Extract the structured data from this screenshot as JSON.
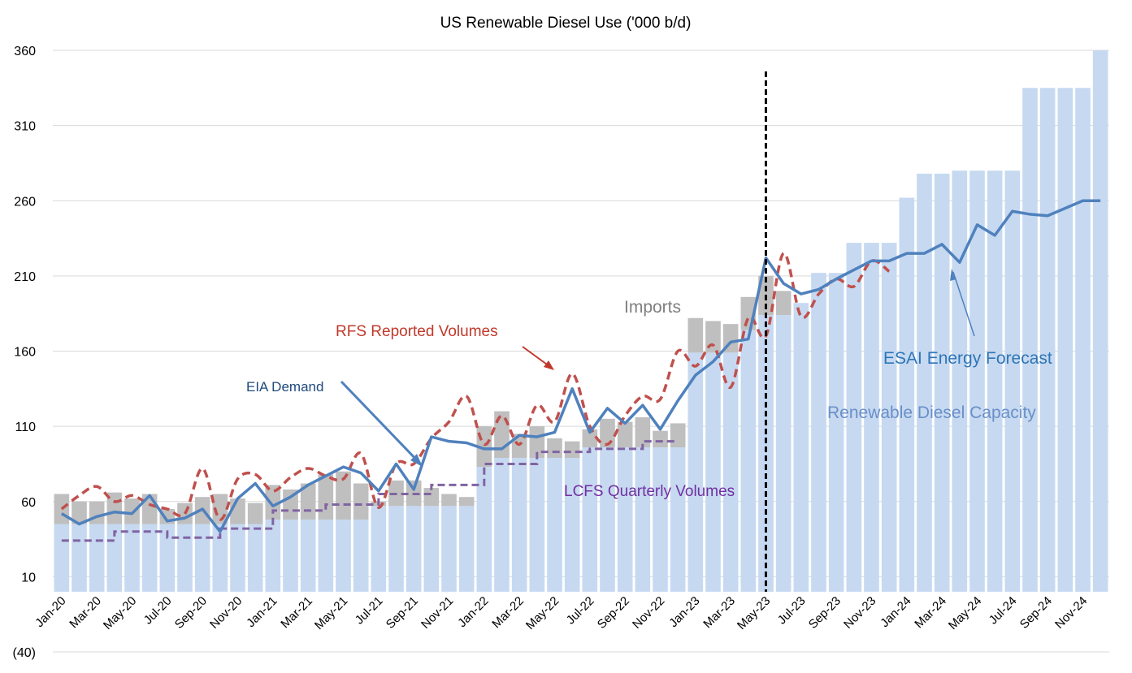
{
  "chart_data": {
    "type": "bar+line",
    "title": "US Renewable Diesel Use ('000 b/d)",
    "ylim": [
      -40,
      360
    ],
    "yticks": [
      360,
      310,
      260,
      210,
      160,
      110,
      60,
      10,
      -40
    ],
    "ytick_labels": [
      "360",
      "310",
      "260",
      "210",
      "160",
      "110",
      "60",
      "10",
      "(40)"
    ],
    "xtick_labels": [
      "Jan-20",
      "Mar-20",
      "May-20",
      "Jul-20",
      "Sep-20",
      "Nov-20",
      "Jan-21",
      "Mar-21",
      "May-21",
      "Jul-21",
      "Sep-21",
      "Nov-21",
      "Jan-22",
      "Mar-22",
      "May-22",
      "Jul-22",
      "Sep-22",
      "Nov-22",
      "Jan-23",
      "Mar-23",
      "May-23",
      "Jul-23",
      "Sep-23",
      "Nov-23",
      "Jan-24",
      "Mar-24",
      "May-24",
      "Jul-24",
      "Sep-24",
      "Nov-24"
    ],
    "months": 60,
    "forecast_divider_month_index": 40.5,
    "series": [
      {
        "name": "Renewable Diesel Capacity",
        "kind": "bar",
        "color": "#c6d9f1",
        "values": [
          45,
          45,
          45,
          45,
          45,
          45,
          45,
          45,
          45,
          45,
          45,
          45,
          48,
          48,
          48,
          48,
          48,
          48,
          57,
          57,
          57,
          57,
          57,
          57,
          83,
          89,
          89,
          89,
          89,
          89,
          96,
          96,
          96,
          96,
          96,
          96,
          159,
          159,
          159,
          174,
          184,
          184,
          192,
          212,
          212,
          232,
          232,
          232,
          262,
          278,
          278,
          280,
          280,
          280,
          280,
          335,
          335,
          335,
          335,
          360
        ]
      },
      {
        "name": "Imports",
        "kind": "bar-stack",
        "color": "#bfbfbf",
        "values": [
          20,
          15,
          15,
          21,
          17,
          20,
          10,
          14,
          18,
          20,
          17,
          14,
          23,
          20,
          24,
          30,
          32,
          24,
          3,
          17,
          17,
          12,
          8,
          6,
          27,
          31,
          16,
          21,
          13,
          11,
          12,
          19,
          17,
          20,
          11,
          16,
          23,
          21,
          19,
          22,
          26,
          16,
          0,
          0,
          0,
          0,
          0,
          0,
          0,
          0,
          0,
          0,
          0,
          0,
          0,
          0,
          0,
          0,
          0,
          0
        ]
      },
      {
        "name": "EIA Demand",
        "kind": "line",
        "color": "#4f81bd",
        "values": [
          52,
          45,
          50,
          53,
          52,
          64,
          47,
          49,
          55,
          40,
          62,
          72,
          57,
          63,
          71,
          77,
          83,
          79,
          67,
          85,
          68,
          103,
          100,
          99,
          95,
          95,
          104,
          103,
          106,
          135,
          106,
          122,
          112,
          124,
          108,
          127,
          144,
          153,
          166,
          168,
          222,
          205,
          198,
          201,
          208,
          214,
          220,
          220,
          225,
          225,
          231,
          219,
          244,
          237,
          253,
          251,
          250,
          255,
          260,
          260
        ]
      },
      {
        "name": "RFS Reported Volumes",
        "kind": "dashed-line",
        "color": "#c0504d",
        "values": [
          55,
          64,
          70,
          60,
          64,
          58,
          55,
          52,
          82,
          48,
          75,
          78,
          67,
          76,
          82,
          77,
          75,
          92,
          56,
          85,
          85,
          102,
          113,
          130,
          98,
          117,
          98,
          124,
          113,
          145,
          110,
          98,
          117,
          130,
          128,
          160,
          150,
          164,
          136,
          182,
          170,
          225,
          183,
          198,
          208,
          203,
          220,
          213,
          null,
          null,
          null,
          null,
          null,
          null,
          null,
          null,
          null,
          null,
          null,
          null
        ]
      },
      {
        "name": "LCFS Quarterly Volumes",
        "kind": "dashed-step",
        "color": "#8064a2",
        "values": [
          34,
          34,
          34,
          40,
          40,
          40,
          36,
          36,
          36,
          42,
          42,
          42,
          54,
          54,
          54,
          58,
          58,
          58,
          65,
          65,
          65,
          71,
          71,
          71,
          85,
          85,
          85,
          93,
          93,
          93,
          95,
          95,
          95,
          100,
          100,
          100,
          null,
          null,
          null,
          null,
          null,
          null,
          null,
          null,
          null,
          null,
          null,
          null,
          null,
          null,
          null,
          null,
          null,
          null,
          null,
          null,
          null,
          null,
          null,
          null
        ]
      }
    ],
    "annotations": {
      "imports": "Imports",
      "rfs": "RFS Reported Volumes",
      "eia": "EIA Demand",
      "lcfs": "LCFS Quarterly Volumes",
      "esai": "ESAI Energy Forecast",
      "capacity": "Renewable Diesel Capacity"
    },
    "colors": {
      "capacity_bar": "#c6d9f1",
      "imports_bar": "#bfbfbf",
      "eia_line": "#4f81bd",
      "rfs_line": "#c0504d",
      "lcfs_line": "#8064a2",
      "grid": "#d9d9d9",
      "divider": "#000000",
      "imports_text": "#7f7f7f",
      "rfs_text": "#c0392b",
      "eia_text": "#1f497d",
      "lcfs_text": "#7030a0",
      "esai_text": "#2e75b6",
      "capacity_text": "#6a8fc8"
    }
  }
}
